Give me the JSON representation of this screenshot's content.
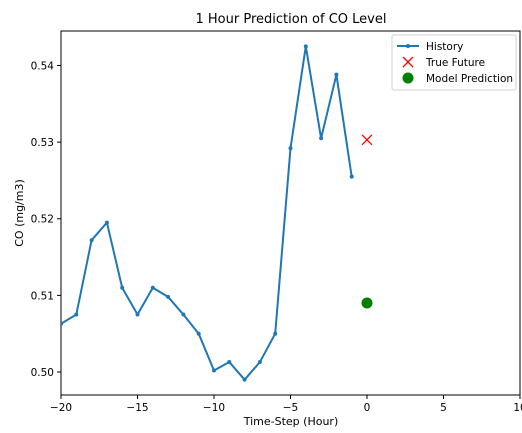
{
  "chart_data": {
    "type": "line",
    "title": "1 Hour Prediction of CO Level",
    "xlabel": "Time-Step (Hour)",
    "ylabel": "CO (mg/m3)",
    "xlim": [
      -20,
      10
    ],
    "ylim": [
      0.497,
      0.5445
    ],
    "x_ticks": [
      -20,
      -15,
      -10,
      -5,
      0,
      5,
      10
    ],
    "y_ticks": [
      0.5,
      0.51,
      0.52,
      0.53,
      0.54
    ],
    "x_tick_labels": [
      "−20",
      "−15",
      "−10",
      "−5",
      "0",
      "5",
      "10"
    ],
    "y_tick_labels": [
      "0.50",
      "0.51",
      "0.52",
      "0.53",
      "0.54"
    ],
    "grid": false,
    "legend_position": "top-right",
    "series": [
      {
        "name": "History",
        "style": "line-with-dots",
        "color": "#1f77b4",
        "x": [
          -20,
          -19,
          -18,
          -17,
          -16,
          -15,
          -14,
          -13,
          -12,
          -11,
          -10,
          -9,
          -8,
          -7,
          -6,
          -5,
          -4,
          -3,
          -2,
          -1
        ],
        "y": [
          0.5063,
          0.5075,
          0.5172,
          0.5195,
          0.511,
          0.5075,
          0.511,
          0.5098,
          0.5075,
          0.505,
          0.5002,
          0.5013,
          0.499,
          0.5013,
          0.505,
          0.5292,
          0.5425,
          0.5305,
          0.5388,
          0.5255
        ]
      },
      {
        "name": "True Future",
        "style": "x-marker",
        "color": "#ff0000",
        "x": [
          0
        ],
        "y": [
          0.5303
        ]
      },
      {
        "name": "Model Prediction",
        "style": "circle-marker",
        "color": "#008000",
        "x": [
          0
        ],
        "y": [
          0.509
        ]
      }
    ]
  }
}
